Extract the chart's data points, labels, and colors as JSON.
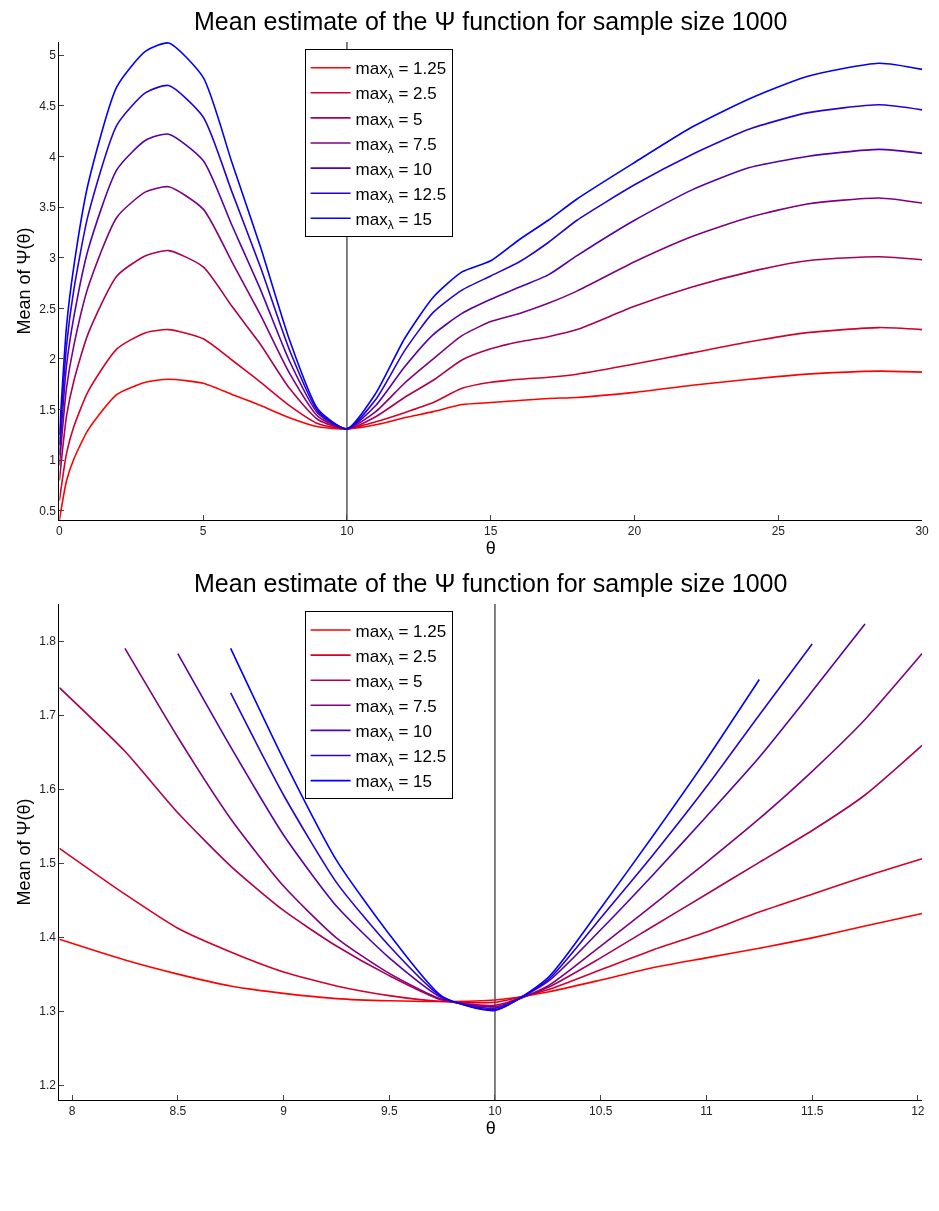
{
  "chart_data": [
    {
      "type": "line",
      "title": "Mean estimate of the Ψ function for sample size 1000",
      "xlabel": "θ",
      "ylabel": "Mean of Ψ(θ)",
      "xlim": [
        0,
        30
      ],
      "ylim": [
        0.41,
        5.13
      ],
      "xticks": [
        0,
        5,
        10,
        15,
        20,
        25,
        30
      ],
      "yticks": [
        0.5,
        1,
        1.5,
        2,
        2.5,
        3,
        3.5,
        4,
        4.5,
        5
      ],
      "grid": false,
      "legend": "top",
      "marker": "none",
      "line_style": "solid",
      "ref_lines": [
        {
          "axis": "x",
          "value": 10,
          "color": "#000000"
        }
      ],
      "series": [
        {
          "name": "max$_{λ}$ = 1.25",
          "color": "#ff0000",
          "x": [
            0,
            0.25,
            0.5,
            1,
            2,
            3,
            3.8,
            5,
            6,
            7,
            8,
            9,
            10,
            11,
            12,
            13,
            14,
            15,
            16,
            17,
            18,
            20,
            22,
            24,
            26,
            28.5,
            30
          ],
          "values": [
            0.41,
            0.8,
            1.01,
            1.3,
            1.65,
            1.77,
            1.8,
            1.76,
            1.65,
            1.54,
            1.42,
            1.33,
            1.31,
            1.35,
            1.42,
            1.48,
            1.55,
            1.57,
            1.59,
            1.61,
            1.62,
            1.67,
            1.74,
            1.8,
            1.85,
            1.88,
            1.87
          ]
        },
        {
          "name": "max$_{λ}$ = 2.5",
          "color": "#d5002a",
          "x": [
            0,
            0.25,
            0.5,
            1,
            2,
            3,
            3.8,
            5,
            6,
            7,
            8,
            9,
            10,
            11,
            12,
            13,
            14,
            15,
            16,
            17,
            18,
            20,
            22,
            24,
            26,
            28.5,
            30
          ],
          "values": [
            0.6,
            1.07,
            1.33,
            1.68,
            2.1,
            2.26,
            2.29,
            2.2,
            1.99,
            1.77,
            1.54,
            1.36,
            1.31,
            1.38,
            1.47,
            1.57,
            1.71,
            1.77,
            1.8,
            1.82,
            1.85,
            1.95,
            2.06,
            2.17,
            2.26,
            2.31,
            2.29
          ]
        },
        {
          "name": "max$_{λ}$ = 5",
          "color": "#aa0055",
          "x": [
            0,
            0.25,
            0.5,
            1,
            2,
            3,
            3.8,
            5,
            6,
            7,
            8,
            9,
            10,
            11,
            12,
            13,
            14,
            15,
            16,
            17,
            18,
            20,
            22,
            24,
            26,
            28.5,
            30
          ],
          "values": [
            0.8,
            1.44,
            1.78,
            2.25,
            2.82,
            3.02,
            3.07,
            2.91,
            2.52,
            2.14,
            1.71,
            1.4,
            1.31,
            1.43,
            1.62,
            1.79,
            1.99,
            2.1,
            2.17,
            2.22,
            2.29,
            2.52,
            2.71,
            2.86,
            2.97,
            3.01,
            2.98
          ]
        },
        {
          "name": "max$_{λ}$ = 7.5",
          "color": "#800080",
          "x": [
            0,
            0.25,
            0.5,
            1,
            2,
            3,
            3.8,
            5,
            6,
            7,
            8,
            9,
            10,
            11,
            12,
            13,
            14,
            15,
            16,
            17,
            18,
            20,
            22,
            24,
            26,
            28.5,
            30
          ],
          "values": [
            0.95,
            1.72,
            2.13,
            2.71,
            3.4,
            3.65,
            3.7,
            3.48,
            2.96,
            2.43,
            1.86,
            1.43,
            1.31,
            1.48,
            1.76,
            2.0,
            2.23,
            2.37,
            2.45,
            2.55,
            2.67,
            2.96,
            3.21,
            3.4,
            3.53,
            3.59,
            3.54
          ]
        },
        {
          "name": "max$_{λ}$ = 10",
          "color": "#5500aa",
          "x": [
            0,
            0.25,
            0.5,
            1,
            2,
            3,
            3.8,
            5,
            6,
            7,
            8,
            9,
            10,
            11,
            12,
            13,
            14,
            15,
            16,
            17,
            18,
            20,
            22,
            24,
            26,
            28.5,
            30
          ],
          "values": [
            1.05,
            1.94,
            2.41,
            3.08,
            3.87,
            4.16,
            4.22,
            3.96,
            3.32,
            2.68,
            1.98,
            1.46,
            1.31,
            1.54,
            1.92,
            2.24,
            2.45,
            2.59,
            2.71,
            2.83,
            3.02,
            3.37,
            3.67,
            3.89,
            4.0,
            4.07,
            4.03
          ]
        },
        {
          "name": "max$_{λ}$ = 12.5",
          "color": "#2a00d5",
          "x": [
            0,
            0.25,
            0.5,
            1,
            2,
            3,
            3.8,
            5,
            6,
            7,
            8,
            9,
            10,
            11,
            12,
            13,
            14,
            15,
            16,
            17,
            18,
            20,
            22,
            24,
            26,
            28.5,
            30
          ],
          "values": [
            1.15,
            2.14,
            2.68,
            3.42,
            4.31,
            4.63,
            4.7,
            4.39,
            3.65,
            2.9,
            2.09,
            1.48,
            1.31,
            1.6,
            2.08,
            2.46,
            2.68,
            2.82,
            2.96,
            3.15,
            3.37,
            3.72,
            4.02,
            4.27,
            4.43,
            4.51,
            4.46
          ]
        },
        {
          "name": "max$_{λ}$ = 15",
          "color": "#0000ff",
          "x": [
            0,
            0.25,
            0.5,
            1,
            2,
            3,
            3.8,
            5,
            6,
            7,
            8,
            9,
            10,
            11,
            12,
            13,
            14,
            15,
            16,
            17,
            18,
            20,
            22,
            24,
            26,
            28.5,
            30
          ],
          "values": [
            1.25,
            2.33,
            2.91,
            3.73,
            4.69,
            5.04,
            5.12,
            4.78,
            3.94,
            3.1,
            2.19,
            1.5,
            1.31,
            1.66,
            2.2,
            2.61,
            2.86,
            2.97,
            3.18,
            3.37,
            3.58,
            3.94,
            4.29,
            4.57,
            4.79,
            4.92,
            4.86
          ]
        }
      ]
    },
    {
      "type": "line",
      "title": "Mean estimate of the Ψ function for sample size 1000",
      "xlabel": "θ",
      "ylabel": "Mean of Ψ(θ)",
      "xlim": [
        7.94,
        12.02
      ],
      "ylim": [
        1.18,
        1.85
      ],
      "xticks": [
        8,
        8.5,
        9,
        9.5,
        10,
        10.5,
        11,
        11.5,
        12
      ],
      "yticks": [
        1.2,
        1.3,
        1.4,
        1.5,
        1.6,
        1.7,
        1.8
      ],
      "grid": false,
      "legend": "top",
      "marker": "none",
      "line_style": "solid",
      "ref_lines": [
        {
          "axis": "x",
          "value": 10,
          "color": "#000000"
        }
      ],
      "series": [
        {
          "name": "max$_{λ}$ = 1.25",
          "color": "#ff0000",
          "x": [
            7.94,
            8.25,
            8.5,
            8.75,
            9,
            9.25,
            9.5,
            9.75,
            10,
            10.25,
            10.5,
            10.75,
            11,
            11.25,
            11.5,
            11.75,
            12.02
          ],
          "values": [
            1.397,
            1.369,
            1.35,
            1.334,
            1.324,
            1.317,
            1.314,
            1.313,
            1.315,
            1.326,
            1.342,
            1.359,
            1.372,
            1.385,
            1.399,
            1.415,
            1.432
          ]
        },
        {
          "name": "max$_{λ}$ = 2.5",
          "color": "#d5002a",
          "x": [
            7.94,
            8.25,
            8.5,
            8.75,
            9,
            9.25,
            9.5,
            9.75,
            10,
            10.25,
            10.5,
            10.75,
            11,
            11.25,
            11.5,
            11.75,
            12.02
          ],
          "values": [
            1.52,
            1.458,
            1.412,
            1.38,
            1.353,
            1.334,
            1.321,
            1.313,
            1.312,
            1.329,
            1.356,
            1.383,
            1.407,
            1.434,
            1.458,
            1.482,
            1.506
          ]
        },
        {
          "name": "max$_{λ}$ = 5",
          "color": "#aa0055",
          "x": [
            7.94,
            8.25,
            8.5,
            8.75,
            9,
            9.25,
            9.5,
            9.75,
            10,
            10.25,
            10.5,
            10.75,
            11,
            11.25,
            11.5,
            11.75,
            12.02
          ],
          "values": [
            1.737,
            1.651,
            1.568,
            1.496,
            1.436,
            1.388,
            1.348,
            1.315,
            1.308,
            1.332,
            1.372,
            1.415,
            1.458,
            1.501,
            1.544,
            1.592,
            1.659
          ]
        },
        {
          "name": "max$_{λ}$ = 7.5",
          "color": "#800080",
          "x": [
            8.25,
            8.5,
            8.75,
            9,
            9.25,
            9.5,
            9.75,
            10,
            10.25,
            10.5,
            10.75,
            11,
            11.25,
            11.5,
            11.75,
            12.02
          ],
          "values": [
            1.79,
            1.67,
            1.56,
            1.469,
            1.399,
            1.351,
            1.316,
            1.306,
            1.334,
            1.388,
            1.444,
            1.501,
            1.56,
            1.624,
            1.694,
            1.783
          ]
        },
        {
          "name": "max$_{λ}$ = 10",
          "color": "#5500aa",
          "x": [
            8.5,
            8.75,
            9,
            9.25,
            9.5,
            9.75,
            10,
            10.25,
            10.5,
            10.75,
            11,
            11.25,
            11.5,
            11.75
          ],
          "values": [
            1.783,
            1.657,
            1.538,
            1.442,
            1.372,
            1.318,
            1.304,
            1.34,
            1.41,
            1.485,
            1.563,
            1.643,
            1.732,
            1.823
          ]
        },
        {
          "name": "max$_{λ}$ = 12.5",
          "color": "#2a00d5",
          "x": [
            8.75,
            9,
            9.25,
            9.5,
            9.75,
            10,
            10.25,
            10.5,
            10.75,
            11,
            11.25,
            11.5
          ],
          "values": [
            1.73,
            1.592,
            1.474,
            1.388,
            1.319,
            1.302,
            1.342,
            1.426,
            1.512,
            1.603,
            1.7,
            1.796
          ]
        },
        {
          "name": "max$_{λ}$ = 15",
          "color": "#0000ff",
          "x": [
            8.75,
            9,
            9.25,
            9.5,
            9.75,
            10,
            10.25,
            10.5,
            10.75,
            11,
            11.25
          ],
          "values": [
            1.79,
            1.64,
            1.504,
            1.404,
            1.32,
            1.301,
            1.345,
            1.439,
            1.538,
            1.64,
            1.748
          ]
        }
      ]
    }
  ]
}
